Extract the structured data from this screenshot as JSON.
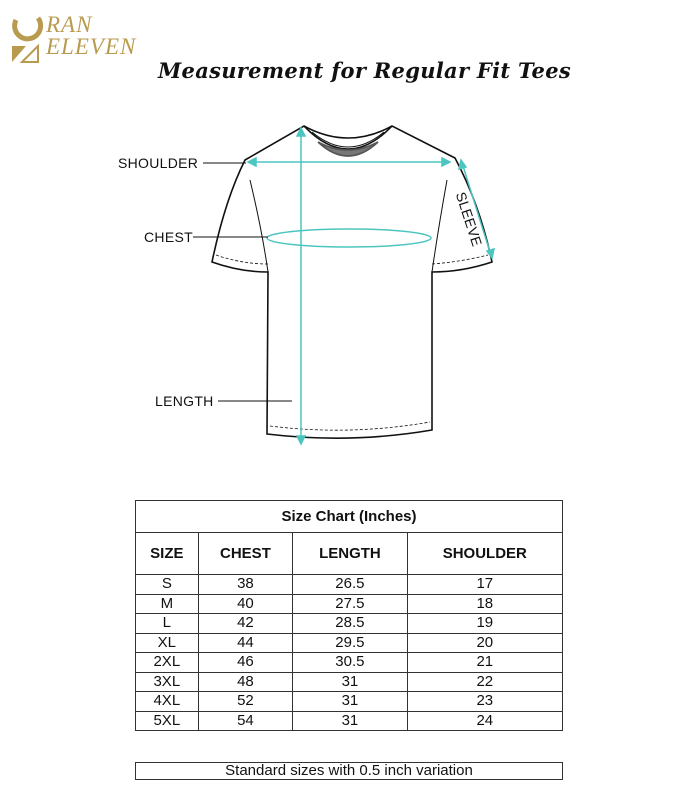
{
  "brand": {
    "line1": "RAN",
    "line2": "ELEVEN",
    "color": "#b99b4f"
  },
  "title": "Measurement for Regular Fit Tees",
  "diagram": {
    "labels": {
      "shoulder": "SHOULDER",
      "chest": "CHEST",
      "length": "LENGTH",
      "sleeve": "SLEEVE"
    },
    "accent": "#4cc5c0"
  },
  "table": {
    "caption": "Size Chart (Inches)",
    "headers": [
      "SIZE",
      "CHEST",
      "LENGTH",
      "SHOULDER"
    ],
    "rows": [
      [
        "S",
        "38",
        "26.5",
        "17"
      ],
      [
        "M",
        "40",
        "27.5",
        "18"
      ],
      [
        "L",
        "42",
        "28.5",
        "19"
      ],
      [
        "XL",
        "44",
        "29.5",
        "20"
      ],
      [
        "2XL",
        "46",
        "30.5",
        "21"
      ],
      [
        "3XL",
        "48",
        "31",
        "22"
      ],
      [
        "4XL",
        "52",
        "31",
        "23"
      ],
      [
        "5XL",
        "54",
        "31",
        "24"
      ]
    ]
  },
  "footer": "Standard sizes with 0.5 inch variation"
}
